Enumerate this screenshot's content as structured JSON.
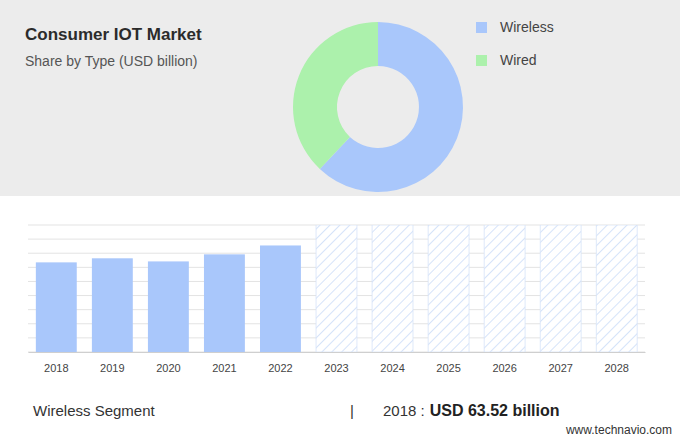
{
  "chart_data": [
    {
      "type": "pie",
      "title": "Consumer IOT Market",
      "subtitle": "Share by Type (USD billion)",
      "categories": [
        "Wireless",
        "Wired"
      ],
      "values": [
        62,
        38
      ],
      "colors": [
        "#a9c7fb",
        "#acf1ac"
      ],
      "legend": "top-right"
    },
    {
      "type": "bar",
      "categories": [
        "2018",
        "2019",
        "2020",
        "2021",
        "2022",
        "2023",
        "2024",
        "2025",
        "2026",
        "2027",
        "2028"
      ],
      "values": [
        63.52,
        66.4,
        64.2,
        69.2,
        75.5,
        null,
        null,
        null,
        null,
        null,
        null
      ],
      "color": "#a9c7fb",
      "ylim": [
        0,
        90
      ],
      "yticks": [
        0,
        10,
        20,
        30,
        40,
        50,
        60,
        70,
        80,
        90
      ],
      "grid": true,
      "tick_labels": "x"
    }
  ],
  "footer": {
    "label": "Wireless Segment",
    "separator": "|",
    "year_text": "2018 :",
    "value_text": "USD 63.52 billion"
  },
  "source": "www.technavio.com"
}
